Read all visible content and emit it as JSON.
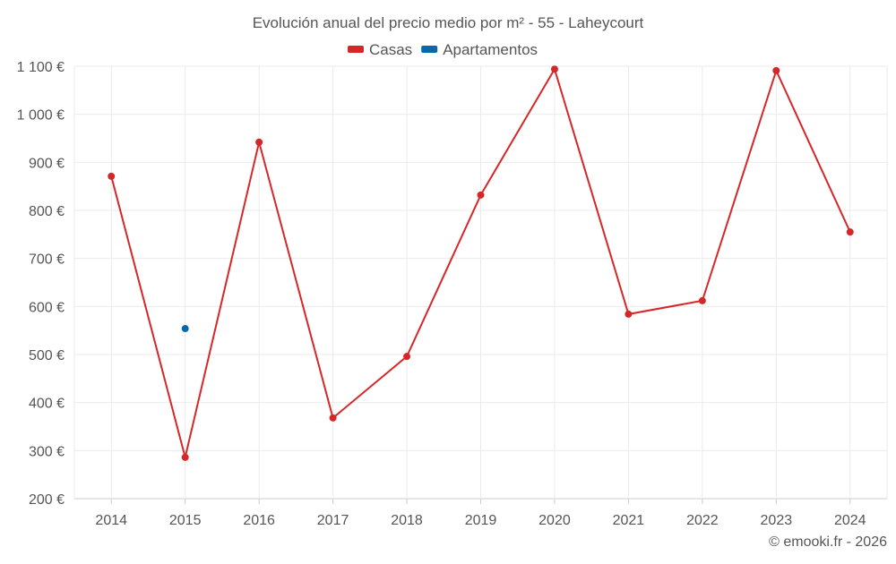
{
  "chart_data": {
    "type": "line",
    "title": "Evolución anual del precio medio por m² - 55 - Laheycourt",
    "categories": [
      "2014",
      "2015",
      "2016",
      "2017",
      "2018",
      "2019",
      "2020",
      "2021",
      "2022",
      "2023",
      "2024"
    ],
    "series": [
      {
        "name": "Casas",
        "color": "#d62728",
        "values": [
          871,
          286,
          942,
          368,
          496,
          832,
          1094,
          584,
          612,
          1091,
          755
        ]
      },
      {
        "name": "Apartamentos",
        "color": "#0868ac",
        "values": [
          null,
          554,
          null,
          null,
          null,
          null,
          null,
          null,
          null,
          null,
          null
        ]
      }
    ],
    "ylim": [
      200,
      1100
    ],
    "yticks": [
      200,
      300,
      400,
      500,
      600,
      700,
      800,
      900,
      1000,
      1100
    ],
    "ytick_labels": [
      "200 €",
      "300 €",
      "400 €",
      "500 €",
      "600 €",
      "700 €",
      "800 €",
      "900 €",
      "1 000 €",
      "1 100 €"
    ],
    "xlabel": "",
    "ylabel": "",
    "grid": true,
    "legend_position": "top-center"
  },
  "credit": "© emooki.fr - 2026"
}
